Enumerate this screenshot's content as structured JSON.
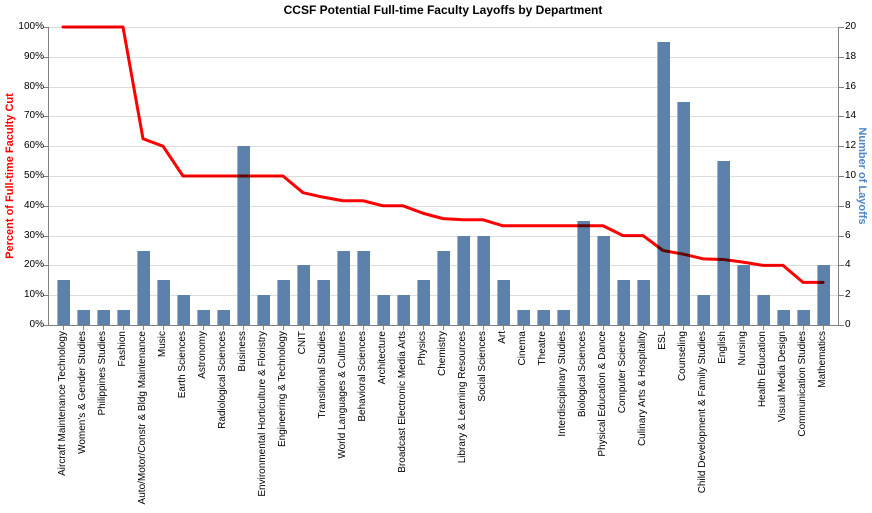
{
  "title": "CCSF Potential Full-time Faculty Layoffs by Department",
  "chart_data": {
    "type": "combo-bar-line",
    "title": "CCSF Potential Full-time Faculty Layoffs by Department",
    "categories": [
      "Aircraft Maintenance Technology",
      "Women's & Gender Studies",
      "Philippines Studies",
      "Fashion",
      "Auto/Motor/Constr & Bldg Maintenance",
      "Music",
      "Earth Sciences",
      "Astronomy",
      "Radiological Sciences",
      "Business",
      "Environmental Horticulture & Floristry",
      "Engineering & Technology",
      "CNIT",
      "Transitional Studies",
      "World Languages & Cultures",
      "Behavioral Sciences",
      "Architecture",
      "Broadcast Electronic Media Arts",
      "Physics",
      "Chemistry",
      "Library & Learning Resources",
      "Social Sciences",
      "Art",
      "Cinema",
      "Theatre",
      "Interdisciplinary Studies",
      "Biological Sciences",
      "Physical Education & Dance",
      "Computer Science",
      "Culinary Arts & Hospitality",
      "ESL",
      "Counseling",
      "Child Development & Family Studies",
      "English",
      "Nursing",
      "Health Education",
      "Visual Media Design",
      "Communication Studies",
      "Mathematics"
    ],
    "series": [
      {
        "name": "Number of Layoffs",
        "type": "bar",
        "axis": "right",
        "values": [
          3,
          1,
          1,
          1,
          5,
          3,
          2,
          1,
          1,
          12,
          2,
          3,
          4,
          3,
          5,
          5,
          2,
          2,
          3,
          5,
          6,
          6,
          3,
          1,
          1,
          1,
          7,
          6,
          3,
          3,
          19,
          15,
          2,
          11,
          4,
          2,
          1,
          1,
          4
        ]
      },
      {
        "name": "Percent of Full-time Faculty Cut",
        "type": "line",
        "axis": "left",
        "values": [
          100,
          100,
          100,
          100,
          62.5,
          60,
          50,
          50,
          50,
          50,
          50,
          50,
          44.4,
          42.9,
          41.7,
          41.7,
          40,
          40,
          37.5,
          35.7,
          35.3,
          35.3,
          33.3,
          33.3,
          33.3,
          33.3,
          33.3,
          33.3,
          30,
          30,
          25,
          23.8,
          22.2,
          22,
          21.1,
          20,
          20,
          14.3,
          14.3
        ]
      }
    ],
    "left_axis": {
      "label": "Percent of Full-time Faculty Cut",
      "min": 0,
      "max": 100,
      "step": 10,
      "tick_labels": [
        "0%",
        "10%",
        "20%",
        "30%",
        "40%",
        "50%",
        "60%",
        "70%",
        "80%",
        "90%",
        "100%"
      ],
      "color": "#FF0000"
    },
    "right_axis": {
      "label": "Number of Layoffs",
      "min": 0,
      "max": 20,
      "step": 2,
      "tick_labels": [
        "0",
        "2",
        "4",
        "6",
        "8",
        "10",
        "12",
        "14",
        "16",
        "18",
        "20"
      ],
      "color": "#4E86C8"
    },
    "grid": true,
    "legend": "none",
    "colors": {
      "bar": "#5E81AC",
      "bar_highlight": "#9FB3CE",
      "line": "#FF0000",
      "gridline": "#DCDCDC",
      "axis": "#808080",
      "tick_text": "#000000"
    }
  }
}
